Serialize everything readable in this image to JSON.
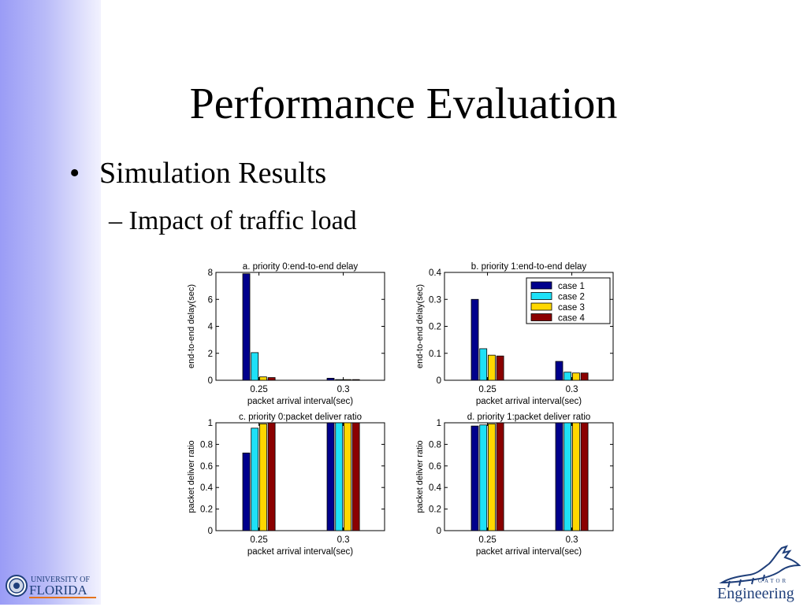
{
  "slide": {
    "title": "Performance Evaluation",
    "bullet_symbol": "•",
    "bullet": "Simulation Results",
    "subbullet": "– Impact of traffic load"
  },
  "logos": {
    "uf_line1": "UNIVERSITY OF",
    "uf_line2": "FLORIDA",
    "eng_small": "GATOR",
    "eng_main": "Engineering"
  },
  "colors": {
    "sidebar": "#a3a5f7",
    "case1": "#00008c",
    "case2": "#1ee1f7",
    "case3": "#ffd700",
    "case4": "#8b0000"
  },
  "chart_data": [
    {
      "id": "a",
      "type": "bar",
      "title": "a. priority 0:end-to-end delay",
      "xlabel": "packet arrival interval(sec)",
      "ylabel": "end-to-end delay(sec)",
      "categories": [
        "0.25",
        "0.3"
      ],
      "ylim": [
        0,
        8
      ],
      "yticks": [
        0,
        2,
        4,
        6,
        8
      ],
      "yticklabels": [
        "0",
        "2",
        "4",
        "6",
        "8"
      ],
      "series": [
        {
          "name": "case 1",
          "values": [
            7.9,
            0.15
          ]
        },
        {
          "name": "case 2",
          "values": [
            2.05,
            0.05
          ]
        },
        {
          "name": "case 3",
          "values": [
            0.25,
            0.05
          ]
        },
        {
          "name": "case 4",
          "values": [
            0.2,
            0.05
          ]
        }
      ],
      "legend": false
    },
    {
      "id": "b",
      "type": "bar",
      "title": "b. priority 1:end-to-end delay",
      "xlabel": "packet arrival interval(sec)",
      "ylabel": "end-to-end delay(sec)",
      "categories": [
        "0.25",
        "0.3"
      ],
      "ylim": [
        0,
        0.4
      ],
      "yticks": [
        0,
        0.1,
        0.2,
        0.3,
        0.4
      ],
      "yticklabels": [
        "0",
        "0.1",
        "0.2",
        "0.3",
        "0.4"
      ],
      "series": [
        {
          "name": "case 1",
          "values": [
            0.3,
            0.07
          ]
        },
        {
          "name": "case 2",
          "values": [
            0.117,
            0.03
          ]
        },
        {
          "name": "case 3",
          "values": [
            0.093,
            0.027
          ]
        },
        {
          "name": "case 4",
          "values": [
            0.09,
            0.027
          ]
        }
      ],
      "legend": true,
      "legend_position": "top-right"
    },
    {
      "id": "c",
      "type": "bar",
      "title": "c. priority 0:packet deliver ratio",
      "xlabel": "packet arrival interval(sec)",
      "ylabel": "packet deliver ratio",
      "categories": [
        "0.25",
        "0.3"
      ],
      "ylim": [
        0,
        1
      ],
      "yticks": [
        0,
        0.2,
        0.4,
        0.6,
        0.8,
        1
      ],
      "yticklabels": [
        "0",
        "0.2",
        "0.4",
        "0.6",
        "0.8",
        "1"
      ],
      "series": [
        {
          "name": "case 1",
          "values": [
            0.72,
            1.0
          ]
        },
        {
          "name": "case 2",
          "values": [
            0.95,
            1.0
          ]
        },
        {
          "name": "case 3",
          "values": [
            0.99,
            1.0
          ]
        },
        {
          "name": "case 4",
          "values": [
            1.0,
            1.0
          ]
        }
      ],
      "legend": false
    },
    {
      "id": "d",
      "type": "bar",
      "title": "d. priority 1:packet deliver ratio",
      "xlabel": "packet arrival interval(sec)",
      "ylabel": "packet deliver ratio",
      "categories": [
        "0.25",
        "0.3"
      ],
      "ylim": [
        0,
        1
      ],
      "yticks": [
        0,
        0.2,
        0.4,
        0.6,
        0.8,
        1
      ],
      "yticklabels": [
        "0",
        "0.2",
        "0.4",
        "0.6",
        "0.8",
        "1"
      ],
      "series": [
        {
          "name": "case 1",
          "values": [
            0.97,
            1.0
          ]
        },
        {
          "name": "case 2",
          "values": [
            0.98,
            1.0
          ]
        },
        {
          "name": "case 3",
          "values": [
            0.99,
            1.0
          ]
        },
        {
          "name": "case 4",
          "values": [
            1.0,
            1.0
          ]
        }
      ],
      "legend": false
    }
  ]
}
